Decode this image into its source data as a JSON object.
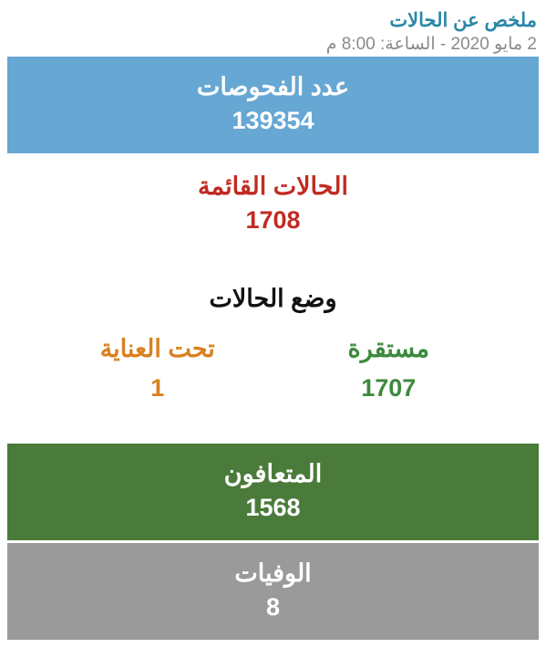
{
  "header": {
    "title": "ملخص عن الحالات",
    "title_color": "#2a87a7",
    "timestamp": "2 مايو 2020 - الساعة: 8:00 م",
    "timestamp_color": "#8a8a8a"
  },
  "tests": {
    "label": "عدد الفحوصات",
    "value": "139354",
    "bg_color": "#66a7d4",
    "text_color": "#ffffff"
  },
  "active": {
    "label": "الحالات القائمة",
    "value": "1708",
    "bg_color": "#ffffff",
    "text_color": "#c12b23"
  },
  "status": {
    "title": "وضع الحالات",
    "title_color": "#111111",
    "bg_color": "#ffffff",
    "stable": {
      "label": "مستقرة",
      "value": "1707",
      "color": "#3c8a3c"
    },
    "critical": {
      "label": "تحت العناية",
      "value": "1",
      "color": "#d9801f"
    }
  },
  "recovered": {
    "label": "المتعافون",
    "value": "1568",
    "bg_color": "#4a7b3a",
    "text_color": "#ffffff"
  },
  "deaths": {
    "label": "الوفيات",
    "value": "8",
    "bg_color": "#9a9a9a",
    "text_color": "#ffffff"
  }
}
